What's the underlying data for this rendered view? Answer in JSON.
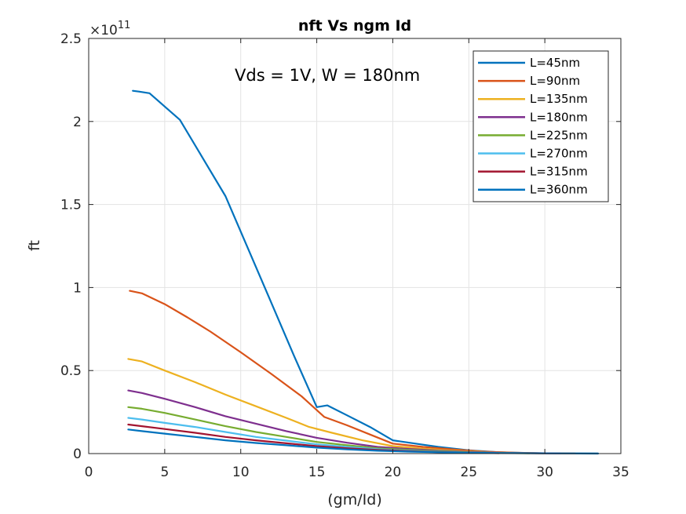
{
  "chart_data": {
    "type": "line",
    "title": "nft Vs ngm Id",
    "xlabel": "(gm/Id)",
    "ylabel": "ft",
    "xlim": [
      0,
      35
    ],
    "ylim": [
      0,
      250000000000.0
    ],
    "x_ticks": [
      0,
      5,
      10,
      15,
      20,
      25,
      30,
      35
    ],
    "y_ticks": [
      0,
      0.5,
      1,
      1.5,
      2,
      2.5
    ],
    "x_tick_labels": [
      "0",
      "5",
      "10",
      "15",
      "20",
      "25",
      "30",
      "35"
    ],
    "y_tick_labels": [
      "0",
      "0.5",
      "1",
      "1.5",
      "2",
      "2.5"
    ],
    "y_exponent": {
      "base": "×10",
      "power": "11"
    },
    "grid": true,
    "annotation": "Vds = 1V, W = 180nm",
    "legend": {
      "position": "top-right"
    },
    "series": [
      {
        "name": "L=45nm",
        "color": "#0072BD",
        "points": [
          [
            2.9,
            218500000000.0
          ],
          [
            3.3,
            218000000000.0
          ],
          [
            4.0,
            217000000000.0
          ],
          [
            5.0,
            209000000000.0
          ],
          [
            6.0,
            201000000000.0
          ],
          [
            7.5,
            178000000000.0
          ],
          [
            9.0,
            155000000000.0
          ],
          [
            10.5,
            123000000000.0
          ],
          [
            12.0,
            91000000000.0
          ],
          [
            13.5,
            59000000000.0
          ],
          [
            15.0,
            28000000000.0
          ],
          [
            15.7,
            29000000000.0
          ],
          [
            17.0,
            23000000000.0
          ],
          [
            18.5,
            16000000000.0
          ],
          [
            20.0,
            8000000000.0
          ],
          [
            21.5,
            6000000000.0
          ],
          [
            23.0,
            4000000000.0
          ],
          [
            25.0,
            2000000000.0
          ],
          [
            27.0,
            800000000.0
          ],
          [
            29.0,
            300000000.0
          ],
          [
            31.0,
            100000000.0
          ],
          [
            33.5,
            20000000.0
          ]
        ]
      },
      {
        "name": "L=90nm",
        "color": "#D95319",
        "points": [
          [
            2.7,
            98000000000.0
          ],
          [
            3.5,
            96500000000.0
          ],
          [
            5.0,
            90000000000.0
          ],
          [
            6.5,
            82000000000.0
          ],
          [
            8.0,
            73500000000.0
          ],
          [
            10.0,
            61000000000.0
          ],
          [
            12.0,
            48000000000.0
          ],
          [
            14.0,
            34500000000.0
          ],
          [
            15.5,
            22000000000.0
          ],
          [
            17.0,
            17000000000.0
          ],
          [
            18.5,
            11500000000.0
          ],
          [
            20.0,
            6000000000.0
          ],
          [
            22.0,
            4000000000.0
          ],
          [
            24.0,
            2500000000.0
          ],
          [
            26.0,
            1200000000.0
          ],
          [
            28.0,
            500000000.0
          ],
          [
            30.0,
            200000000.0
          ],
          [
            32.0,
            50000000.0
          ]
        ]
      },
      {
        "name": "L=135nm",
        "color": "#EDB120",
        "points": [
          [
            2.6,
            57000000000.0
          ],
          [
            3.5,
            55500000000.0
          ],
          [
            5.0,
            50000000000.0
          ],
          [
            7.0,
            43000000000.0
          ],
          [
            9.0,
            35500000000.0
          ],
          [
            11.0,
            28500000000.0
          ],
          [
            13.0,
            21500000000.0
          ],
          [
            14.5,
            16000000000.0
          ],
          [
            16.0,
            12500000000.0
          ],
          [
            18.0,
            8000000000.0
          ],
          [
            20.0,
            4500000000.0
          ],
          [
            22.0,
            3000000000.0
          ],
          [
            24.0,
            1800000000.0
          ],
          [
            26.0,
            900000000.0
          ],
          [
            28.0,
            400000000.0
          ],
          [
            30.0,
            150000000.0
          ]
        ]
      },
      {
        "name": "L=180nm",
        "color": "#7E2F8E",
        "points": [
          [
            2.6,
            38000000000.0
          ],
          [
            3.5,
            36500000000.0
          ],
          [
            5.0,
            33000000000.0
          ],
          [
            7.0,
            28000000000.0
          ],
          [
            9.0,
            22500000000.0
          ],
          [
            11.0,
            18000000000.0
          ],
          [
            13.0,
            13500000000.0
          ],
          [
            15.0,
            9500000000.0
          ],
          [
            17.0,
            6500000000.0
          ],
          [
            19.0,
            4000000000.0
          ],
          [
            21.0,
            2800000000.0
          ],
          [
            23.0,
            1800000000.0
          ],
          [
            25.0,
            1000000000.0
          ],
          [
            27.0,
            500000000.0
          ],
          [
            29.0,
            250000000.0
          ],
          [
            31.0,
            100000000.0
          ]
        ]
      },
      {
        "name": "L=225nm",
        "color": "#77AC30",
        "points": [
          [
            2.6,
            28000000000.0
          ],
          [
            3.5,
            27000000000.0
          ],
          [
            5.0,
            24500000000.0
          ],
          [
            7.0,
            20500000000.0
          ],
          [
            9.0,
            16500000000.0
          ],
          [
            11.0,
            13000000000.0
          ],
          [
            13.0,
            10000000000.0
          ],
          [
            15.0,
            7000000000.0
          ],
          [
            17.0,
            5000000000.0
          ],
          [
            19.0,
            3200000000.0
          ],
          [
            21.0,
            2200000000.0
          ],
          [
            23.0,
            1400000000.0
          ],
          [
            25.0,
            800000000.0
          ],
          [
            27.0,
            400000000.0
          ],
          [
            29.0,
            200000000.0
          ]
        ]
      },
      {
        "name": "L=270nm",
        "color": "#4DBEEE",
        "points": [
          [
            2.6,
            21500000000.0
          ],
          [
            3.5,
            20500000000.0
          ],
          [
            5.0,
            18500000000.0
          ],
          [
            7.0,
            16000000000.0
          ],
          [
            9.0,
            13000000000.0
          ],
          [
            11.0,
            10000000000.0
          ],
          [
            13.0,
            7800000000.0
          ],
          [
            15.0,
            5600000000.0
          ],
          [
            17.0,
            4000000000.0
          ],
          [
            19.0,
            2700000000.0
          ],
          [
            21.0,
            1800000000.0
          ],
          [
            23.0,
            1100000000.0
          ],
          [
            25.0,
            600000000.0
          ],
          [
            27.0,
            300000000.0
          ]
        ]
      },
      {
        "name": "L=315nm",
        "color": "#A2142F",
        "points": [
          [
            2.6,
            17500000000.0
          ],
          [
            3.5,
            16500000000.0
          ],
          [
            5.0,
            14800000000.0
          ],
          [
            7.0,
            12500000000.0
          ],
          [
            9.0,
            10000000000.0
          ],
          [
            11.0,
            8000000000.0
          ],
          [
            13.0,
            6200000000.0
          ],
          [
            15.0,
            4500000000.0
          ],
          [
            17.0,
            3200000000.0
          ],
          [
            19.0,
            2200000000.0
          ],
          [
            21.0,
            1500000000.0
          ],
          [
            23.0,
            900000000.0
          ],
          [
            25.0,
            500000000.0
          ],
          [
            27.0,
            250000000.0
          ]
        ]
      },
      {
        "name": "L=360nm",
        "color": "#0072BD",
        "points": [
          [
            2.6,
            14500000000.0
          ],
          [
            3.5,
            13500000000.0
          ],
          [
            5.0,
            12000000000.0
          ],
          [
            7.0,
            10000000000.0
          ],
          [
            9.0,
            8000000000.0
          ],
          [
            11.0,
            6400000000.0
          ],
          [
            13.0,
            5000000000.0
          ],
          [
            15.0,
            3600000000.0
          ],
          [
            17.0,
            2500000000.0
          ],
          [
            19.0,
            1700000000.0
          ],
          [
            21.0,
            1200000000.0
          ],
          [
            23.0,
            800000000.0
          ],
          [
            25.0,
            500000000.0
          ],
          [
            27.0,
            300000000.0
          ],
          [
            30.0,
            150000000.0
          ],
          [
            33.5,
            50000000.0
          ]
        ]
      }
    ]
  }
}
